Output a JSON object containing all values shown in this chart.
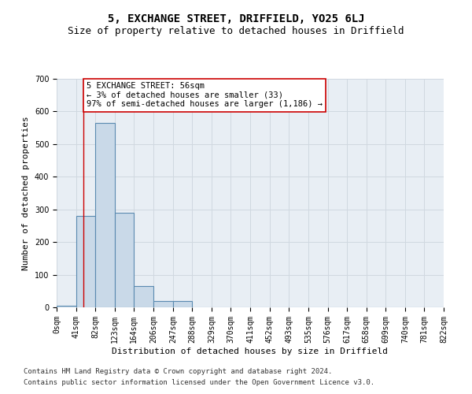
{
  "title": "5, EXCHANGE STREET, DRIFFIELD, YO25 6LJ",
  "subtitle": "Size of property relative to detached houses in Driffield",
  "xlabel": "Distribution of detached houses by size in Driffield",
  "ylabel": "Number of detached properties",
  "bin_edges": [
    0,
    41,
    82,
    123,
    164,
    206,
    247,
    288,
    329,
    370,
    411,
    452,
    493,
    535,
    576,
    617,
    658,
    699,
    740,
    781,
    822
  ],
  "bar_heights": [
    5,
    280,
    565,
    290,
    65,
    20,
    20,
    0,
    0,
    0,
    0,
    0,
    0,
    0,
    0,
    0,
    0,
    0,
    0,
    0
  ],
  "bar_facecolor": "#c9d9e8",
  "bar_edgecolor": "#5a8ab0",
  "bar_linewidth": 0.8,
  "grid_color": "#d0d8e0",
  "background_color": "#e8eef4",
  "property_line_x": 56,
  "property_line_color": "#cc0000",
  "annotation_text": "5 EXCHANGE STREET: 56sqm\n← 3% of detached houses are smaller (33)\n97% of semi-detached houses are larger (1,186) →",
  "annotation_box_edgecolor": "#cc0000",
  "annotation_box_facecolor": "#ffffff",
  "ylim": [
    0,
    700
  ],
  "yticks": [
    0,
    100,
    200,
    300,
    400,
    500,
    600,
    700
  ],
  "tick_labels": [
    "0sqm",
    "41sqm",
    "82sqm",
    "123sqm",
    "164sqm",
    "206sqm",
    "247sqm",
    "288sqm",
    "329sqm",
    "370sqm",
    "411sqm",
    "452sqm",
    "493sqm",
    "535sqm",
    "576sqm",
    "617sqm",
    "658sqm",
    "699sqm",
    "740sqm",
    "781sqm",
    "822sqm"
  ],
  "footer_line1": "Contains HM Land Registry data © Crown copyright and database right 2024.",
  "footer_line2": "Contains public sector information licensed under the Open Government Licence v3.0.",
  "title_fontsize": 10,
  "subtitle_fontsize": 9,
  "xlabel_fontsize": 8,
  "ylabel_fontsize": 8,
  "tick_fontsize": 7,
  "annotation_fontsize": 7.5,
  "footer_fontsize": 6.5
}
